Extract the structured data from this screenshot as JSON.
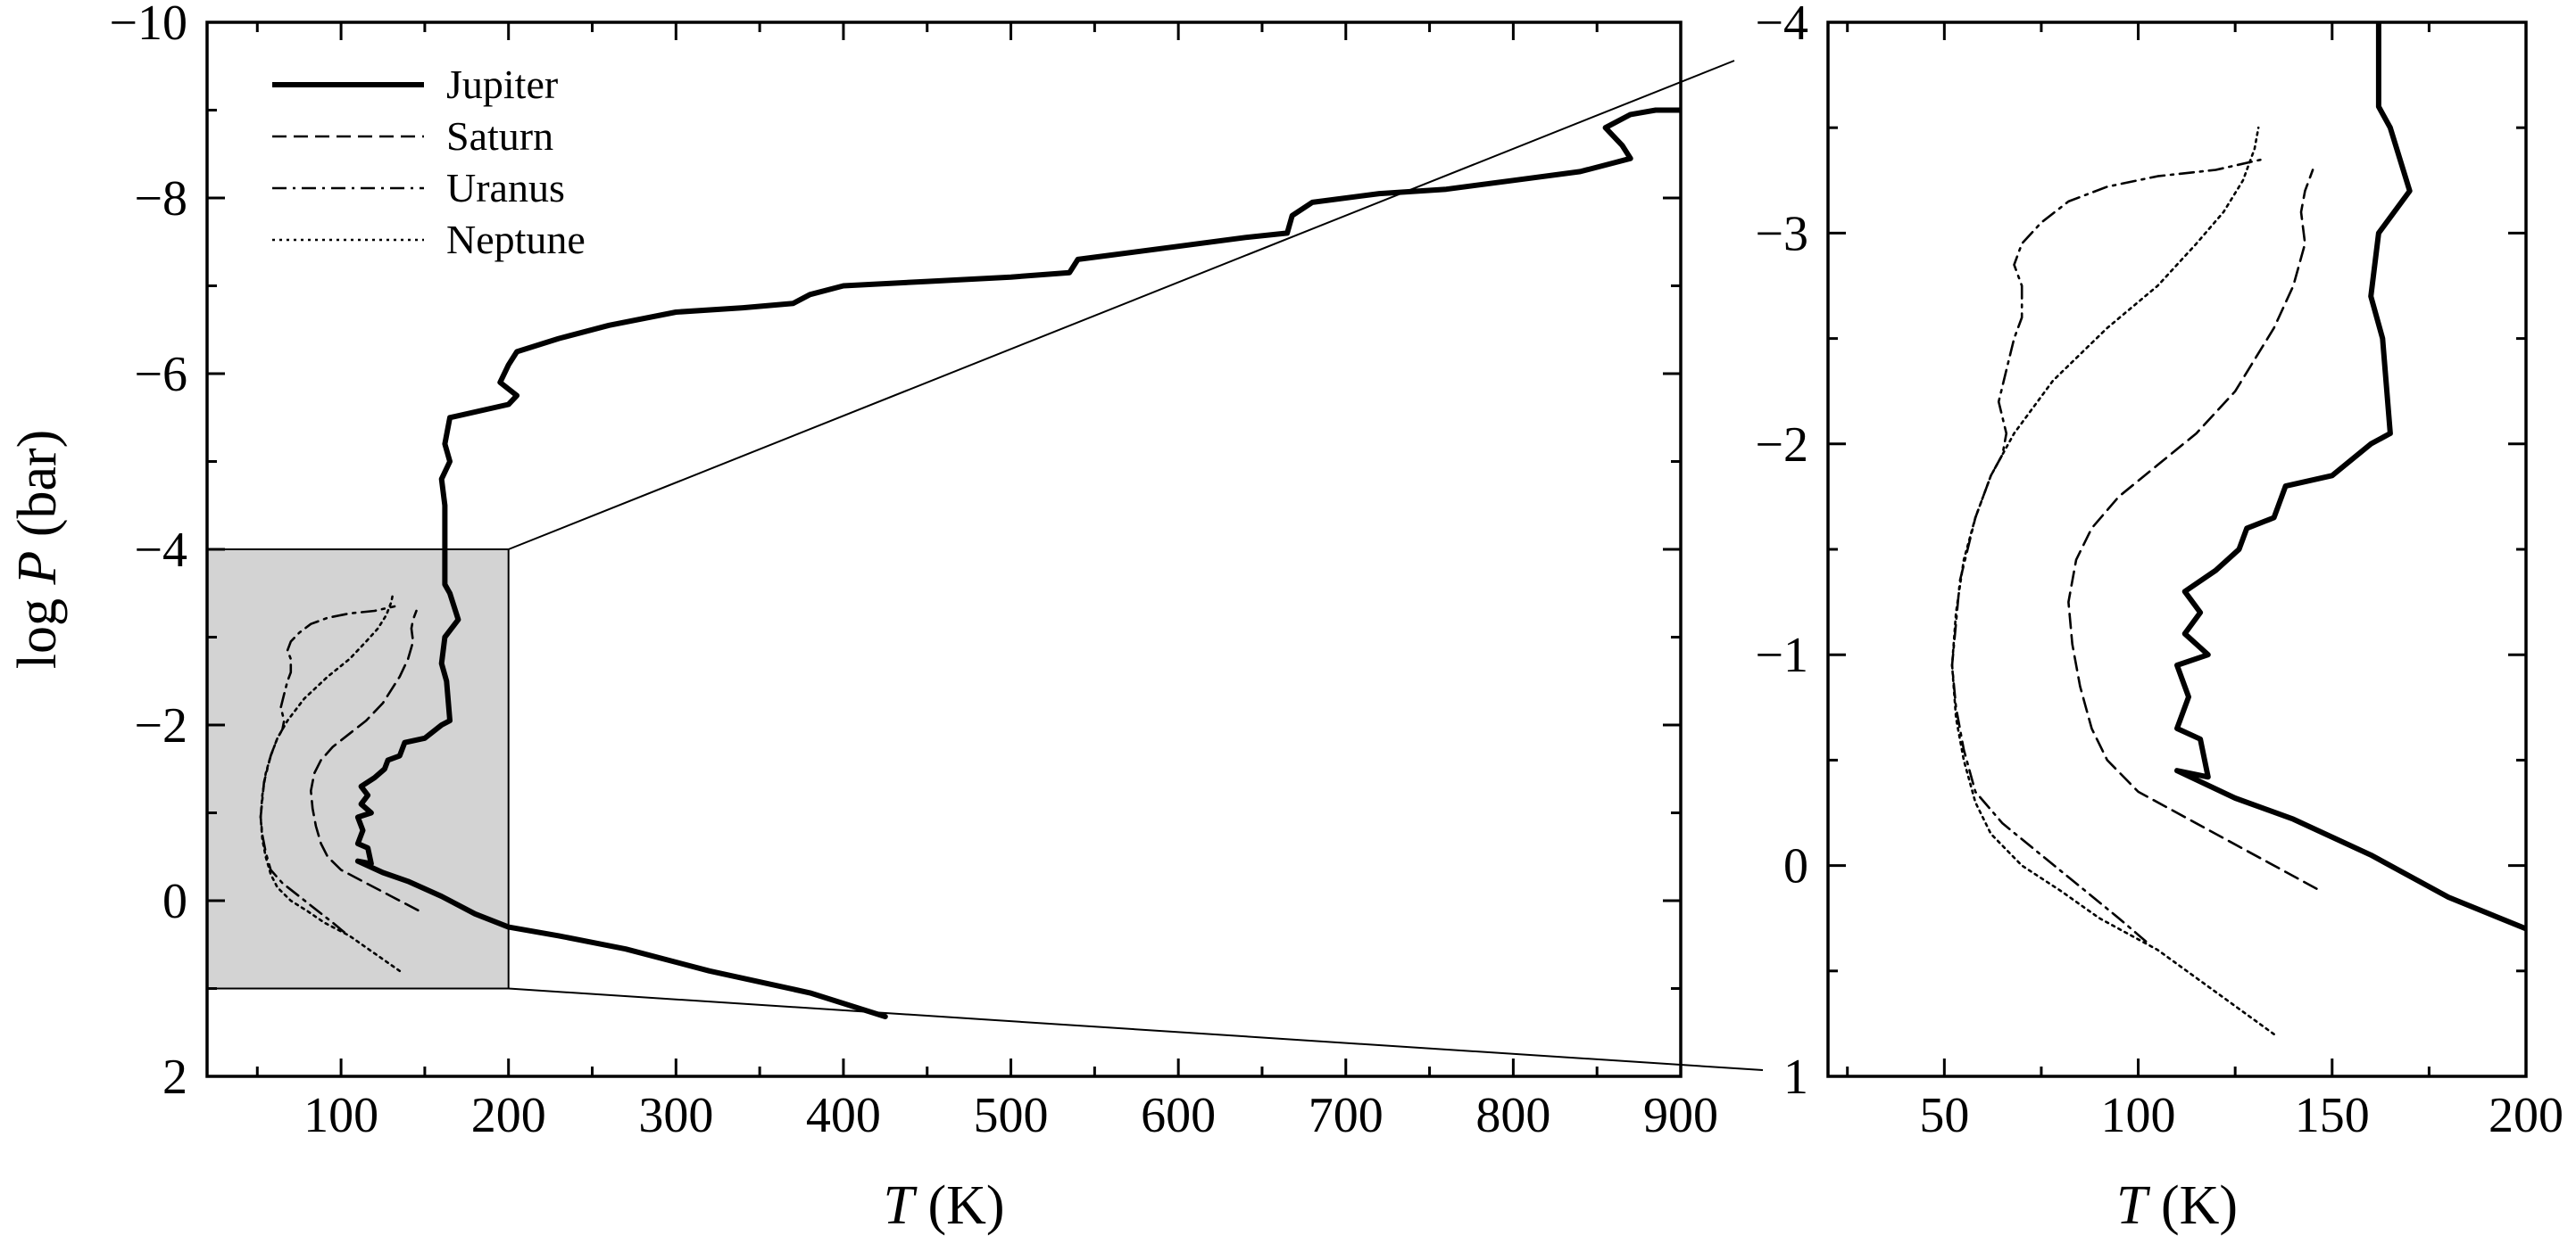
{
  "chart_data": [
    {
      "type": "line",
      "panel": "left",
      "xlabel_italic": "T",
      "xlabel_rest": " (K)",
      "ylabel_prefix": "log ",
      "ylabel_italic": "P",
      "ylabel_rest": " (bar)",
      "xlim": [
        20,
        900
      ],
      "ylim": [
        2,
        -10
      ],
      "y_inverted": true,
      "xticks": [
        100,
        200,
        300,
        400,
        500,
        600,
        700,
        800,
        900
      ],
      "xtick_labels": [
        "100",
        "200",
        "300",
        "400",
        "500",
        "600",
        "700",
        "800",
        "900"
      ],
      "yticks": [
        2,
        0,
        -2,
        -4,
        -6,
        -8,
        -10
      ],
      "ytick_labels": [
        "2",
        "0",
        "−2",
        "−4",
        "−6",
        "−8",
        "−10"
      ],
      "zoom_box": {
        "x": [
          20,
          200
        ],
        "y": [
          1,
          -4
        ],
        "fill": "#d3d3d3"
      },
      "legend_position": "top-left",
      "series": [
        {
          "name": "Jupiter",
          "style": "solid",
          "points": [
            [
              425,
              1.32
            ],
            [
              380,
              1.05
            ],
            [
              320,
              0.8
            ],
            [
              270,
              0.55
            ],
            [
              230,
              0.4
            ],
            [
              200,
              0.3
            ],
            [
              180,
              0.15
            ],
            [
              160,
              -0.05
            ],
            [
              140,
              -0.22
            ],
            [
              125,
              -0.32
            ],
            [
              110,
              -0.45
            ],
            [
              118,
              -0.42
            ],
            [
              116,
              -0.6
            ],
            [
              110,
              -0.65
            ],
            [
              113,
              -0.8
            ],
            [
              110,
              -0.95
            ],
            [
              118,
              -1.0
            ],
            [
              112,
              -1.1
            ],
            [
              116,
              -1.2
            ],
            [
              112,
              -1.3
            ],
            [
              120,
              -1.4
            ],
            [
              126,
              -1.5
            ],
            [
              128,
              -1.6
            ],
            [
              135,
              -1.65
            ],
            [
              138,
              -1.8
            ],
            [
              150,
              -1.85
            ],
            [
              160,
              -2.0
            ],
            [
              165,
              -2.05
            ],
            [
              163,
              -2.5
            ],
            [
              160,
              -2.7
            ],
            [
              162,
              -3.0
            ],
            [
              170,
              -3.2
            ],
            [
              165,
              -3.5
            ],
            [
              162,
              -3.6
            ],
            [
              162,
              -4.0
            ],
            [
              162,
              -4.5
            ],
            [
              160,
              -4.8
            ],
            [
              165,
              -5.0
            ],
            [
              162,
              -5.2
            ],
            [
              165,
              -5.5
            ],
            [
              200,
              -5.65
            ],
            [
              205,
              -5.75
            ],
            [
              195,
              -5.9
            ],
            [
              200,
              -6.1
            ],
            [
              205,
              -6.25
            ],
            [
              230,
              -6.4
            ],
            [
              260,
              -6.55
            ],
            [
              300,
              -6.7
            ],
            [
              340,
              -6.75
            ],
            [
              370,
              -6.8
            ],
            [
              380,
              -6.9
            ],
            [
              400,
              -7.0
            ],
            [
              450,
              -7.05
            ],
            [
              500,
              -7.1
            ],
            [
              535,
              -7.15
            ],
            [
              540,
              -7.3
            ],
            [
              560,
              -7.35
            ],
            [
              600,
              -7.45
            ],
            [
              640,
              -7.55
            ],
            [
              665,
              -7.6
            ],
            [
              668,
              -7.8
            ],
            [
              680,
              -7.95
            ],
            [
              720,
              -8.05
            ],
            [
              760,
              -8.1
            ],
            [
              800,
              -8.2
            ],
            [
              840,
              -8.3
            ],
            [
              860,
              -8.4
            ],
            [
              870,
              -8.45
            ],
            [
              865,
              -8.6
            ],
            [
              855,
              -8.8
            ],
            [
              870,
              -8.95
            ],
            [
              885,
              -9.0
            ],
            [
              900,
              -9.0
            ]
          ]
        },
        {
          "name": "Saturn",
          "style": "dashed",
          "points": [
            [
              146,
              0.11
            ],
            [
              130,
              -0.05
            ],
            [
              115,
              -0.2
            ],
            [
              100,
              -0.35
            ],
            [
              92,
              -0.5
            ],
            [
              88,
              -0.65
            ],
            [
              85,
              -0.85
            ],
            [
              83,
              -1.05
            ],
            [
              82,
              -1.25
            ],
            [
              84,
              -1.45
            ],
            [
              88,
              -1.6
            ],
            [
              95,
              -1.75
            ],
            [
              105,
              -1.9
            ],
            [
              115,
              -2.05
            ],
            [
              125,
              -2.25
            ],
            [
              135,
              -2.55
            ],
            [
              140,
              -2.75
            ],
            [
              143,
              -2.95
            ],
            [
              142,
              -3.1
            ],
            [
              143,
              -3.2
            ],
            [
              145,
              -3.3
            ]
          ]
        },
        {
          "name": "Uranus",
          "style": "dashdot",
          "points": [
            [
              102,
              0.36
            ],
            [
              95,
              0.25
            ],
            [
              85,
              0.1
            ],
            [
              75,
              -0.05
            ],
            [
              65,
              -0.2
            ],
            [
              58,
              -0.35
            ],
            [
              55,
              -0.55
            ],
            [
              53,
              -0.75
            ],
            [
              52,
              -0.95
            ],
            [
              53,
              -1.15
            ],
            [
              54,
              -1.35
            ],
            [
              56,
              -1.5
            ],
            [
              58,
              -1.65
            ],
            [
              60,
              -1.75
            ],
            [
              62,
              -1.85
            ],
            [
              65,
              -1.95
            ],
            [
              66,
              -2.05
            ],
            [
              64,
              -2.2
            ],
            [
              66,
              -2.35
            ],
            [
              68,
              -2.5
            ],
            [
              70,
              -2.6
            ],
            [
              70,
              -2.75
            ],
            [
              68,
              -2.85
            ],
            [
              70,
              -2.95
            ],
            [
              75,
              -3.05
            ],
            [
              82,
              -3.15
            ],
            [
              92,
              -3.22
            ],
            [
              105,
              -3.27
            ],
            [
              120,
              -3.3
            ],
            [
              132,
              -3.35
            ]
          ]
        },
        {
          "name": "Neptune",
          "style": "dotted",
          "points": [
            [
              135,
              0.8
            ],
            [
              120,
              0.6
            ],
            [
              105,
              0.4
            ],
            [
              90,
              0.25
            ],
            [
              80,
              0.12
            ],
            [
              70,
              0.0
            ],
            [
              62,
              -0.15
            ],
            [
              58,
              -0.3
            ],
            [
              55,
              -0.5
            ],
            [
              53,
              -0.7
            ],
            [
              52,
              -0.95
            ],
            [
              53,
              -1.2
            ],
            [
              55,
              -1.45
            ],
            [
              58,
              -1.65
            ],
            [
              62,
              -1.85
            ],
            [
              68,
              -2.05
            ],
            [
              78,
              -2.3
            ],
            [
              92,
              -2.55
            ],
            [
              105,
              -2.75
            ],
            [
              115,
              -2.95
            ],
            [
              122,
              -3.1
            ],
            [
              127,
              -3.25
            ],
            [
              130,
              -3.4
            ],
            [
              131,
              -3.5
            ]
          ]
        }
      ]
    },
    {
      "type": "line",
      "panel": "right",
      "xlabel_italic": "T",
      "xlabel_rest": " (K)",
      "xlim": [
        20,
        200
      ],
      "ylim": [
        1,
        -4
      ],
      "y_inverted": true,
      "xticks": [
        50,
        100,
        150,
        200
      ],
      "xtick_labels": [
        "50",
        "100",
        "150",
        "200"
      ],
      "yticks": [
        1,
        0,
        -1,
        -2,
        -3,
        -4
      ],
      "ytick_labels": [
        "1",
        "0",
        "−1",
        "−2",
        "−3",
        "−4"
      ],
      "note": "zoomed view of shaded region"
    }
  ]
}
